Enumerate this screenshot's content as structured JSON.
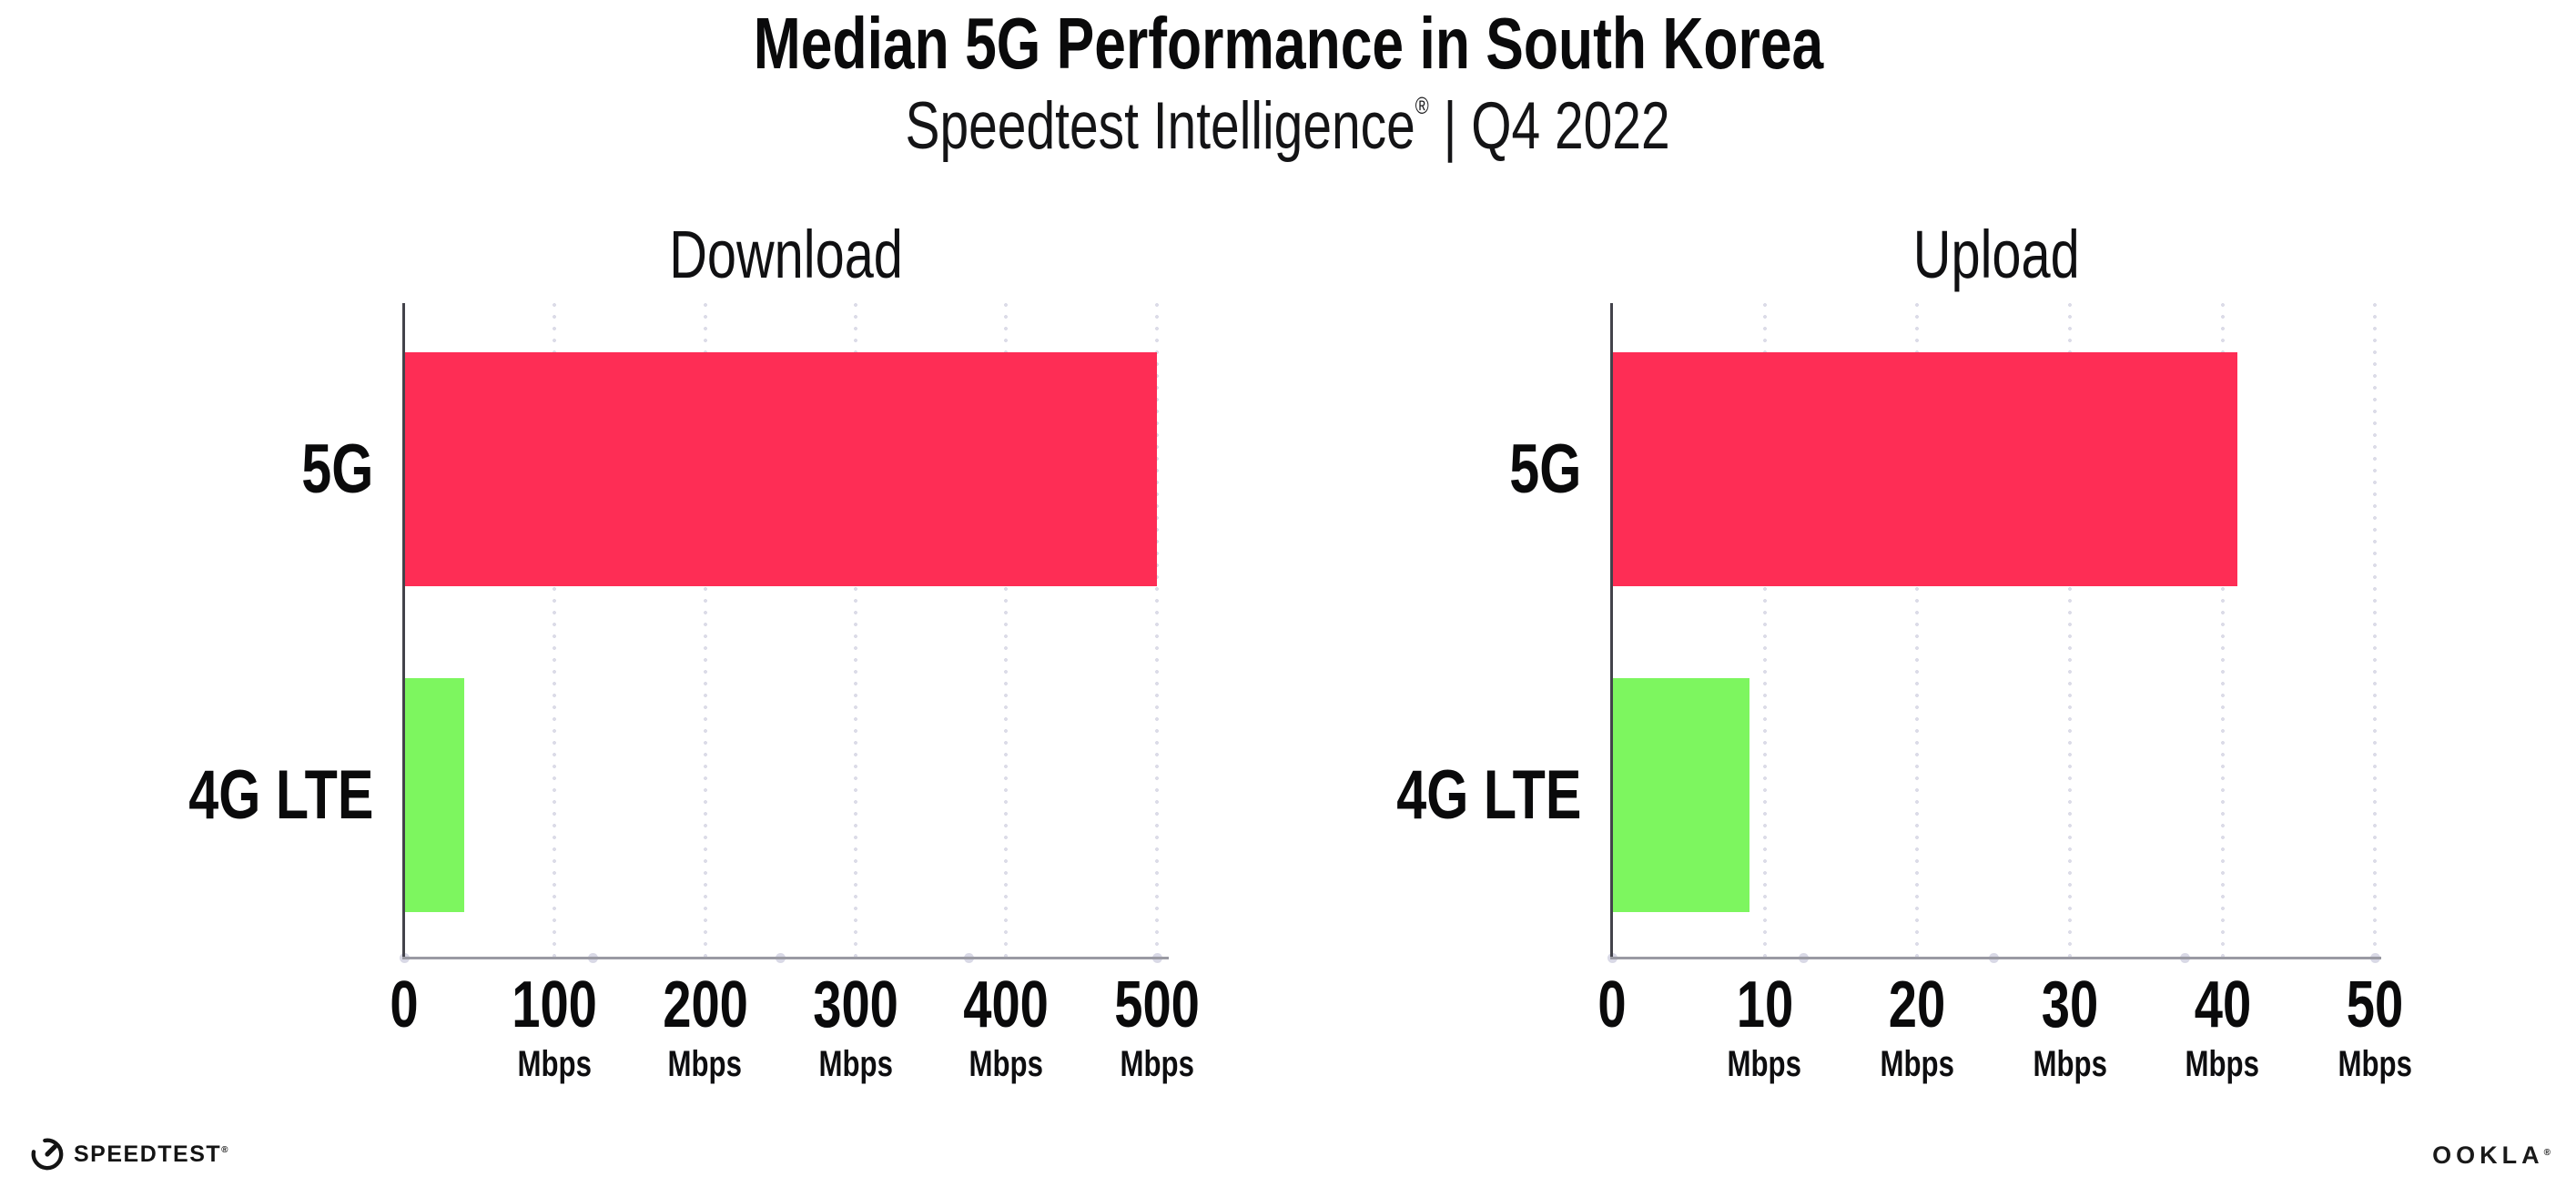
{
  "header": {
    "title": "Median 5G Performance in South Korea",
    "subtitle_brand": "Speedtest Intelligence",
    "subtitle_reg": "®",
    "subtitle_rest": " | Q4 2022"
  },
  "footer": {
    "speedtest_label": "SPEEDTEST",
    "speedtest_reg": "®",
    "ookla_label": "OOKLA",
    "ookla_reg": "®"
  },
  "colors": {
    "bar_5g": "#FE2D55",
    "bar_4g_lte": "#7DF65F",
    "gridline_dots": "#DCDCE8",
    "axis_bottom_line": "#9A9AA3",
    "axis_left_line": "#43434B",
    "axis_tick_dots": "#D9D9E6",
    "text": "#0A0A0B"
  },
  "chart_data": [
    {
      "type": "bar",
      "orientation": "horizontal",
      "title": "Download",
      "categories": [
        "5G",
        "4G LTE"
      ],
      "values": [
        500,
        40
      ],
      "unit": "Mbps",
      "bar_colors": [
        "#FE2D55",
        "#7DF65F"
      ],
      "xlim": [
        0,
        508
      ],
      "grid": "dotted-vertical",
      "gridlines": [
        100,
        200,
        300,
        400,
        500
      ],
      "axis_dots": [
        0,
        125,
        250,
        375,
        500
      ],
      "ticks": [
        {
          "value": 0,
          "label": "0",
          "unit": ""
        },
        {
          "value": 100,
          "label": "100",
          "unit": "Mbps"
        },
        {
          "value": 200,
          "label": "200",
          "unit": "Mbps"
        },
        {
          "value": 300,
          "label": "300",
          "unit": "Mbps"
        },
        {
          "value": 400,
          "label": "400",
          "unit": "Mbps"
        },
        {
          "value": 500,
          "label": "500",
          "unit": "Mbps"
        }
      ]
    },
    {
      "type": "bar",
      "orientation": "horizontal",
      "title": "Upload",
      "categories": [
        "5G",
        "4G LTE"
      ],
      "values": [
        41,
        9
      ],
      "unit": "Mbps",
      "bar_colors": [
        "#FE2D55",
        "#7DF65F"
      ],
      "xlim": [
        0,
        50.4
      ],
      "grid": "dotted-vertical",
      "gridlines": [
        10,
        20,
        30,
        40,
        50
      ],
      "axis_dots": [
        0,
        12.5,
        25,
        37.5,
        50
      ],
      "ticks": [
        {
          "value": 0,
          "label": "0",
          "unit": ""
        },
        {
          "value": 10,
          "label": "10",
          "unit": "Mbps"
        },
        {
          "value": 20,
          "label": "20",
          "unit": "Mbps"
        },
        {
          "value": 30,
          "label": "30",
          "unit": "Mbps"
        },
        {
          "value": 40,
          "label": "40",
          "unit": "Mbps"
        },
        {
          "value": 50,
          "label": "50",
          "unit": "Mbps"
        }
      ]
    }
  ]
}
